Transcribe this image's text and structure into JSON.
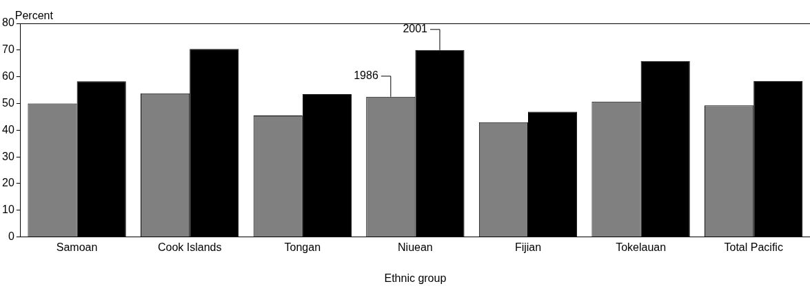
{
  "chart_data": {
    "type": "bar",
    "ylabel": "Percent",
    "xlabel": "Ethnic group",
    "categories": [
      "Samoan",
      "Cook Islands",
      "Tongan",
      "Niuean",
      "Fijian",
      "Tokelauan",
      "Total Pacific"
    ],
    "series": [
      {
        "name": "1986",
        "color": "#808080",
        "values": [
          50.0,
          53.8,
          45.5,
          52.5,
          43.0,
          50.7,
          49.3
        ]
      },
      {
        "name": "2001",
        "color": "#000000",
        "values": [
          58.3,
          70.4,
          53.5,
          70.0,
          46.9,
          65.9,
          58.4
        ]
      }
    ],
    "ylim": [
      0,
      80
    ],
    "yticks": [
      0,
      10,
      20,
      30,
      40,
      50,
      60,
      70,
      80
    ],
    "grid": false,
    "legend": false
  }
}
